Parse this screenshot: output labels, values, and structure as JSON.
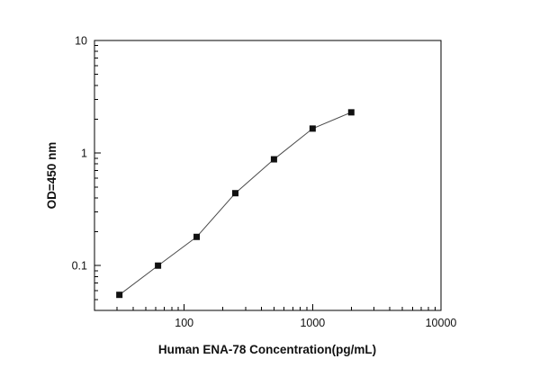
{
  "chart_data": {
    "type": "line",
    "title": "",
    "xlabel": "Human ENA-78 Concentration(pg/mL)",
    "ylabel": "OD=450 nm",
    "xscale": "log",
    "yscale": "log",
    "xlim": [
      20,
      10000
    ],
    "ylim": [
      0.04,
      10
    ],
    "x": [
      31.25,
      62.5,
      125,
      250,
      500,
      1000,
      2000
    ],
    "y": [
      0.055,
      0.1,
      0.18,
      0.44,
      0.88,
      1.65,
      2.3
    ],
    "x_major_tick_labels": [
      "100",
      "1000",
      "10000"
    ],
    "y_major_tick_labels": [
      "0.1",
      "1",
      "10"
    ],
    "marker": "square",
    "marker_color": "#111111",
    "line_color": "#4a4a4a",
    "frame_color": "#000000",
    "grid": "off",
    "legend": "none"
  }
}
